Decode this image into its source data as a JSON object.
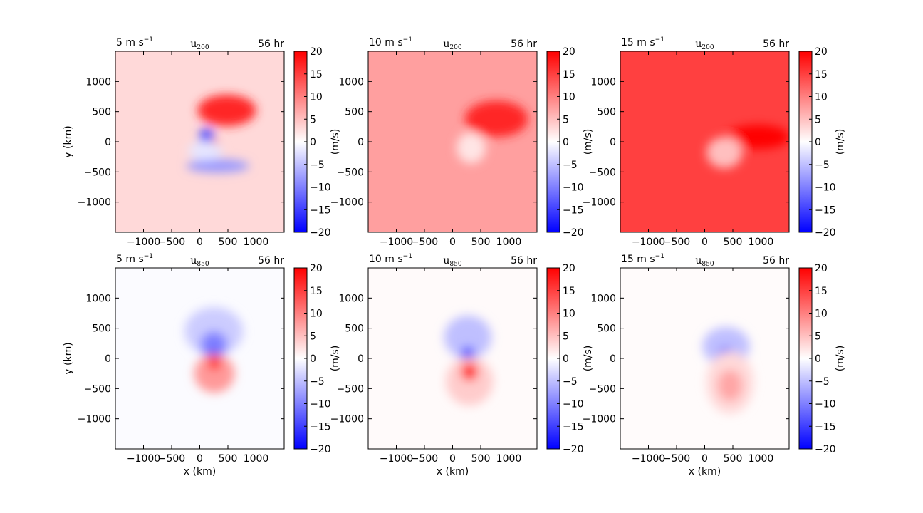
{
  "chart_data": {
    "type": "heatmap",
    "colormap": "bwr",
    "colors": {
      "negative": "#0000ff",
      "zero": "#ffffff",
      "positive": "#ff0000"
    },
    "x_ticks": [
      -1000,
      -500,
      0,
      500,
      1000
    ],
    "y_ticks": [
      -1000,
      -500,
      0,
      500,
      1000
    ],
    "x_tick_labels": [
      "−1000",
      "−500",
      "0",
      "500",
      "1000"
    ],
    "y_tick_labels": [
      "−1000",
      "−500",
      "0",
      "500",
      "1000"
    ],
    "xlim": [
      -1500,
      1500
    ],
    "ylim": [
      -1500,
      1500
    ],
    "colorbar": {
      "range": [
        -20,
        20
      ],
      "ticks": [
        20,
        15,
        10,
        5,
        0,
        -5,
        -10,
        -15,
        -20
      ],
      "tick_labels": [
        "20",
        "15",
        "10",
        "5",
        "0",
        "−5",
        "−10",
        "−15",
        "−20"
      ],
      "label": "(m/s)"
    },
    "xlabel": "x (km)",
    "ylabel": "y (km)",
    "panels": [
      {
        "row": 0,
        "col": 0,
        "left_title": "5 m s",
        "left_title_sup": "−1",
        "center_title": "u",
        "center_sub": "200",
        "right_title": "56 hr",
        "background_value": 3.0,
        "features": [
          {
            "x": 480,
            "y": 520,
            "rx": 520,
            "ry": 260,
            "value": 17
          },
          {
            "x": 120,
            "y": 80,
            "rx": 130,
            "ry": 140,
            "value": -15
          },
          {
            "x": 250,
            "y": -40,
            "rx": 90,
            "ry": 80,
            "value": 18
          },
          {
            "x": 320,
            "y": -400,
            "rx": 560,
            "ry": 110,
            "value": -8
          },
          {
            "x": 100,
            "y": -150,
            "rx": 300,
            "ry": 160,
            "value": -2
          }
        ]
      },
      {
        "row": 0,
        "col": 1,
        "left_title": "10 m s",
        "left_title_sup": "−1",
        "center_title": "u",
        "center_sub": "200",
        "right_title": "56 hr",
        "background_value": 7.5,
        "features": [
          {
            "x": 780,
            "y": 380,
            "rx": 560,
            "ry": 300,
            "value": 17
          },
          {
            "x": 330,
            "y": -100,
            "rx": 260,
            "ry": 260,
            "value": 2
          }
        ]
      },
      {
        "row": 0,
        "col": 2,
        "left_title": "15 m s",
        "left_title_sup": "−1",
        "center_title": "u",
        "center_sub": "200",
        "right_title": "56 hr",
        "background_value": 15,
        "features": [
          {
            "x": 950,
            "y": 80,
            "rx": 560,
            "ry": 200,
            "value": 20
          },
          {
            "x": 350,
            "y": -180,
            "rx": 320,
            "ry": 260,
            "value": 5
          }
        ]
      },
      {
        "row": 1,
        "col": 0,
        "left_title": "5 m s",
        "left_title_sup": "−1",
        "center_title": "u",
        "center_sub": "850",
        "right_title": "56 hr",
        "background_value": -0.3,
        "features": [
          {
            "x": 250,
            "y": 450,
            "rx": 520,
            "ry": 400,
            "value": -4
          },
          {
            "x": 250,
            "y": 230,
            "rx": 240,
            "ry": 220,
            "value": -10
          },
          {
            "x": 250,
            "y": 60,
            "rx": 80,
            "ry": 90,
            "value": -20
          },
          {
            "x": 260,
            "y": -250,
            "rx": 360,
            "ry": 320,
            "value": 8
          },
          {
            "x": 260,
            "y": -80,
            "rx": 110,
            "ry": 110,
            "value": 19
          }
        ]
      },
      {
        "row": 1,
        "col": 1,
        "left_title": "10 m s",
        "left_title_sup": "−1",
        "center_title": "u",
        "center_sub": "850",
        "right_title": "56 hr",
        "background_value": 0.4,
        "features": [
          {
            "x": 270,
            "y": 350,
            "rx": 420,
            "ry": 360,
            "value": -5
          },
          {
            "x": 270,
            "y": 80,
            "rx": 110,
            "ry": 110,
            "value": -20
          },
          {
            "x": 300,
            "y": -380,
            "rx": 420,
            "ry": 400,
            "value": 4
          },
          {
            "x": 300,
            "y": -220,
            "rx": 150,
            "ry": 150,
            "value": 18
          }
        ]
      },
      {
        "row": 1,
        "col": 2,
        "left_title": "15 m s",
        "left_title_sup": "−1",
        "center_title": "u",
        "center_sub": "850",
        "right_title": "56 hr",
        "background_value": 0.3,
        "features": [
          {
            "x": 380,
            "y": 200,
            "rx": 420,
            "ry": 320,
            "value": -5
          },
          {
            "x": 380,
            "y": 40,
            "rx": 150,
            "ry": 150,
            "value": -13
          },
          {
            "x": 450,
            "y": -400,
            "rx": 420,
            "ry": 520,
            "value": 3
          },
          {
            "x": 450,
            "y": -450,
            "rx": 220,
            "ry": 260,
            "value": 7
          }
        ]
      }
    ]
  }
}
